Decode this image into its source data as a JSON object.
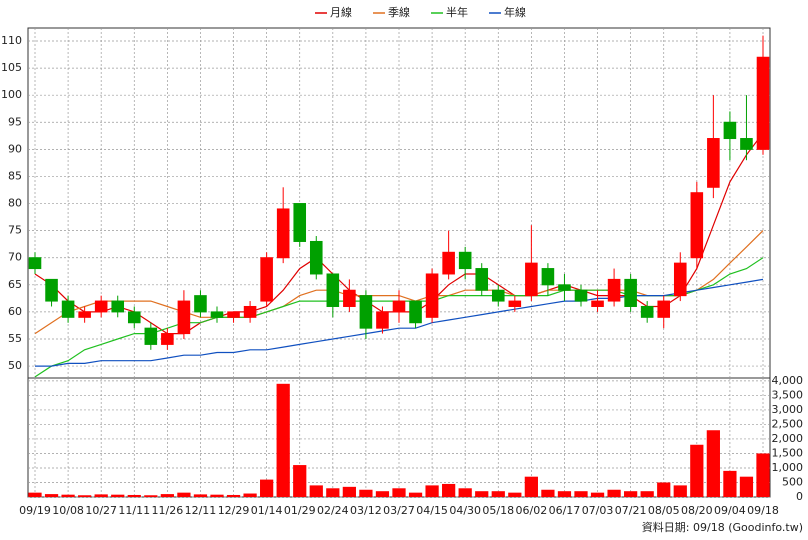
{
  "chart_data": {
    "type": "candlestick",
    "categories": [
      "09/19",
      null,
      "10/08",
      null,
      "10/27",
      null,
      "11/11",
      null,
      "11/26",
      null,
      "12/11",
      null,
      "12/29",
      null,
      "01/14",
      null,
      "01/29",
      null,
      "02/24",
      null,
      "03/12",
      null,
      "03/27",
      null,
      "04/15",
      null,
      "04/30",
      null,
      "05/18",
      null,
      "06/02",
      null,
      "06/17",
      null,
      "07/03",
      null,
      "07/21",
      null,
      "08/05",
      null,
      "08/20",
      null,
      "09/04",
      null,
      "09/18"
    ],
    "open": [
      70,
      66,
      62,
      59,
      60,
      62,
      60,
      57,
      54,
      56,
      63,
      60,
      59,
      59,
      62,
      70,
      80,
      73,
      67,
      61,
      63,
      57,
      60,
      62,
      59,
      67,
      71,
      68,
      64,
      61,
      63,
      68,
      65,
      64,
      61,
      62,
      66,
      61,
      59,
      63,
      70,
      83,
      95,
      92,
      90
    ],
    "high": [
      71,
      66,
      63,
      61,
      63,
      63,
      61,
      58,
      57,
      64,
      64,
      61,
      60,
      62,
      71,
      83,
      80,
      74,
      67,
      66,
      64,
      61,
      64,
      62,
      68,
      75,
      72,
      69,
      65,
      63,
      76,
      69,
      67,
      65,
      64,
      68,
      67,
      62,
      63,
      71,
      84,
      100,
      97,
      100,
      111
    ],
    "low": [
      67,
      61,
      58,
      58,
      59,
      59,
      57,
      53,
      53,
      55,
      59,
      58,
      58,
      58,
      61,
      69,
      72,
      66,
      59,
      60,
      55,
      56,
      58,
      57,
      58,
      66,
      66,
      63,
      61,
      60,
      62,
      63,
      62,
      61,
      60,
      61,
      60,
      58,
      57,
      62,
      68,
      81,
      88,
      88,
      89
    ],
    "close": [
      68,
      62,
      59,
      60,
      62,
      60,
      58,
      54,
      56,
      62,
      60,
      59,
      60,
      61,
      70,
      79,
      73,
      67,
      61,
      64,
      57,
      60,
      62,
      58,
      67,
      71,
      68,
      64,
      62,
      62,
      69,
      65,
      64,
      62,
      62,
      66,
      61,
      59,
      62,
      69,
      82,
      92,
      92,
      90,
      107
    ],
    "up_color": "#ff0000",
    "down_color": "#00a000",
    "series": [
      {
        "name": "月線",
        "color": "#e00000",
        "values": [
          67,
          65,
          62,
          60,
          60,
          61,
          60,
          58,
          56,
          56,
          58,
          59,
          60,
          60,
          61,
          64,
          68,
          70,
          67,
          64,
          62,
          60,
          60,
          60,
          62,
          65,
          67,
          67,
          65,
          63,
          63,
          64,
          65,
          64,
          63,
          63,
          63,
          61,
          61,
          63,
          68,
          76,
          84,
          89,
          93
        ]
      },
      {
        "name": "季線",
        "color": "#e07020",
        "values": [
          56,
          58,
          60,
          61,
          62,
          62,
          62,
          62,
          61,
          60,
          59,
          59,
          59,
          59,
          60,
          61,
          63,
          64,
          64,
          63,
          63,
          63,
          63,
          62,
          63,
          63,
          64,
          64,
          64,
          63,
          63,
          64,
          64,
          64,
          64,
          64,
          64,
          63,
          63,
          63,
          64,
          66,
          69,
          72,
          75
        ]
      },
      {
        "name": "半年",
        "color": "#20c020",
        "values": [
          48,
          50,
          51,
          53,
          54,
          55,
          56,
          56,
          57,
          58,
          58,
          59,
          59,
          59,
          60,
          61,
          62,
          62,
          62,
          62,
          62,
          62,
          62,
          62,
          62,
          63,
          63,
          63,
          63,
          63,
          63,
          63,
          64,
          64,
          64,
          64,
          63,
          63,
          63,
          63,
          64,
          65,
          67,
          68,
          70
        ]
      },
      {
        "name": "年線",
        "color": "#1050c0",
        "values": [
          50,
          50,
          50.5,
          50.5,
          51,
          51,
          51,
          51,
          51.5,
          52,
          52,
          52.5,
          52.5,
          53,
          53,
          53.5,
          54,
          54.5,
          55,
          55.5,
          56,
          56.5,
          57,
          57,
          58,
          58.5,
          59,
          59.5,
          60,
          60.5,
          61,
          61.5,
          62,
          62,
          62.5,
          62.5,
          63,
          63,
          63,
          63.5,
          64,
          64.5,
          65,
          65.5,
          66
        ]
      }
    ],
    "ylim": [
      47.8,
      112.4
    ],
    "yticks": [
      50,
      55,
      60,
      65,
      70,
      75,
      80,
      85,
      90,
      95,
      100,
      105,
      110
    ],
    "volume": {
      "color": "#ff0000",
      "values": [
        150,
        100,
        80,
        60,
        90,
        80,
        70,
        60,
        100,
        150,
        90,
        80,
        70,
        120,
        600,
        3900,
        1100,
        400,
        300,
        350,
        250,
        200,
        300,
        150,
        400,
        450,
        300,
        200,
        200,
        150,
        700,
        250,
        200,
        200,
        150,
        250,
        200,
        200,
        500,
        400,
        1800,
        2300,
        900,
        700,
        1500
      ],
      "ylim": [
        0,
        4100
      ],
      "yticks": [
        0,
        500,
        {
          "value": 1000,
          "label": "1,000"
        },
        {
          "value": 1500,
          "label": "1,500"
        },
        {
          "value": 2000,
          "label": "2,000"
        },
        {
          "value": 2500,
          "label": "2,500"
        },
        {
          "value": 3000,
          "label": "3,000"
        },
        {
          "value": 3500,
          "label": "3,500"
        },
        {
          "value": 4000,
          "label": "4,000"
        }
      ]
    },
    "grid": true,
    "footer": "資料日期: 09/18 (Goodinfo.tw)"
  }
}
